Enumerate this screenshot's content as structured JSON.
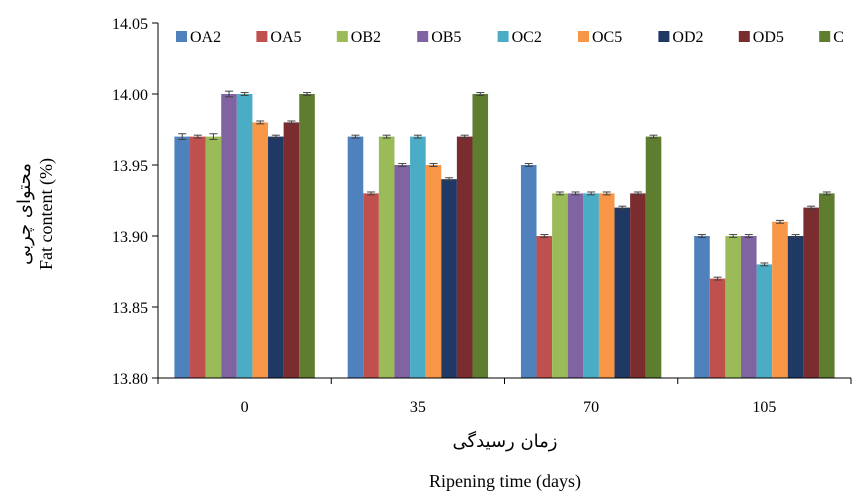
{
  "chart_data": {
    "type": "bar",
    "title": "",
    "categories": [
      "0",
      "35",
      "70",
      "105"
    ],
    "xlabel_fa": "زمان رسیدگی",
    "xlabel": "Ripening time (days)",
    "ylabel_fa": "محتوای چربی",
    "ylabel": "Fat content (%)",
    "ylim": [
      13.8,
      14.05
    ],
    "yticks": [
      "13.80",
      "13.85",
      "13.90",
      "13.95",
      "14.00",
      "14.05"
    ],
    "ytick_values": [
      13.8,
      13.85,
      13.9,
      13.95,
      14.0,
      14.05
    ],
    "error_bars": true,
    "grid": false,
    "legend_position": "top",
    "series": [
      {
        "name": "OA2",
        "color": "#4F81BD",
        "values": [
          13.97,
          13.97,
          13.95,
          13.9
        ],
        "errors": [
          0.002,
          0.001,
          0.001,
          0.001
        ]
      },
      {
        "name": "OA5",
        "color": "#C0504D",
        "values": [
          13.97,
          13.93,
          13.9,
          13.87
        ],
        "errors": [
          0.001,
          0.001,
          0.001,
          0.001
        ]
      },
      {
        "name": "OB2",
        "color": "#9BBB59",
        "values": [
          13.97,
          13.97,
          13.93,
          13.9
        ],
        "errors": [
          0.002,
          0.001,
          0.001,
          0.001
        ]
      },
      {
        "name": "OB5",
        "color": "#8064A2",
        "values": [
          14.0,
          13.95,
          13.93,
          13.9
        ],
        "errors": [
          0.002,
          0.001,
          0.001,
          0.001
        ]
      },
      {
        "name": "OC2",
        "color": "#4BACC6",
        "values": [
          14.0,
          13.97,
          13.93,
          13.88
        ],
        "errors": [
          0.001,
          0.001,
          0.001,
          0.001
        ]
      },
      {
        "name": "OC5",
        "color": "#F79646",
        "values": [
          13.98,
          13.95,
          13.93,
          13.91
        ],
        "errors": [
          0.001,
          0.001,
          0.001,
          0.001
        ]
      },
      {
        "name": "OD2",
        "color": "#1F3864",
        "values": [
          13.97,
          13.94,
          13.92,
          13.9
        ],
        "errors": [
          0.001,
          0.001,
          0.001,
          0.001
        ]
      },
      {
        "name": "OD5",
        "color": "#7B2C2E",
        "values": [
          13.98,
          13.97,
          13.93,
          13.92
        ],
        "errors": [
          0.001,
          0.001,
          0.001,
          0.001
        ]
      },
      {
        "name": "C",
        "color": "#5E7D2F",
        "values": [
          14.0,
          14.0,
          13.97,
          13.93
        ],
        "errors": [
          0.001,
          0.001,
          0.001,
          0.001
        ]
      }
    ]
  }
}
